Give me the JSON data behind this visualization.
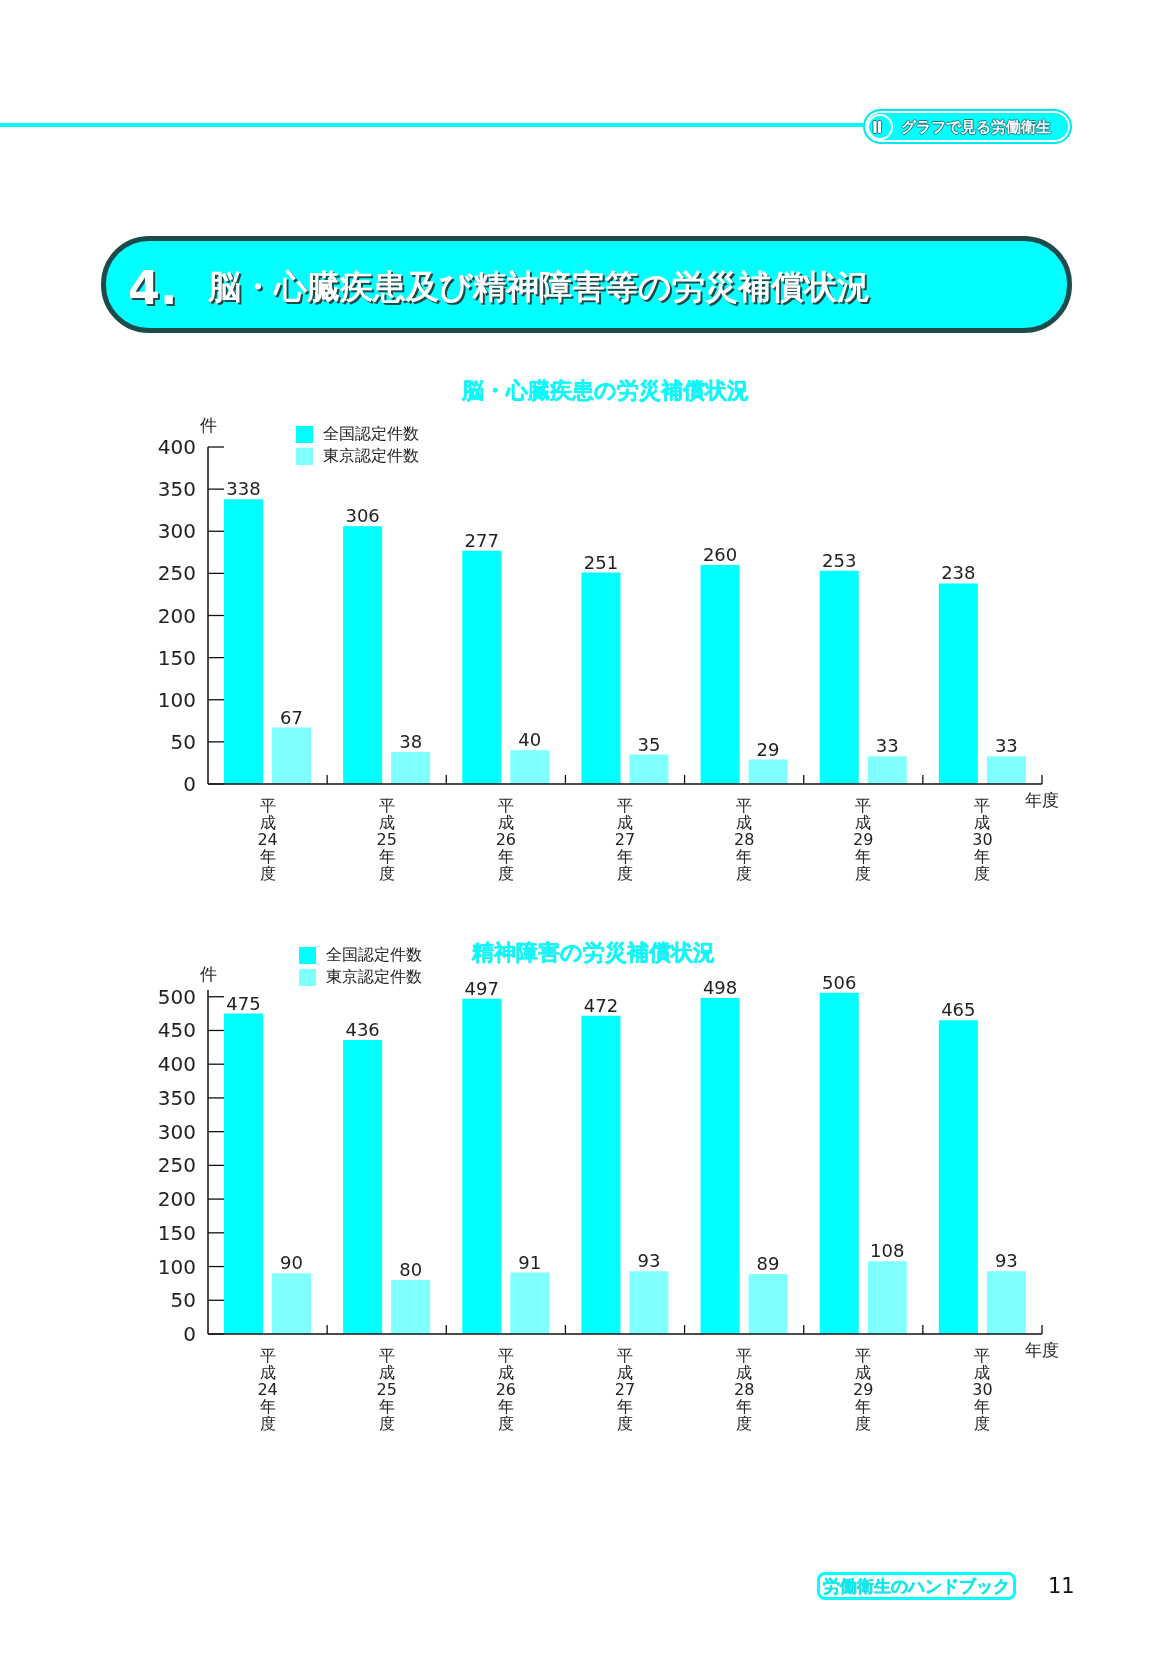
{
  "chart_data": [
    {
      "type": "bar",
      "title": "脳・心臓疾患の労災補償状況",
      "ylabel": "件",
      "xlabel": "年度",
      "categories": [
        "平成24年度",
        "平成25年度",
        "平成26年度",
        "平成27年度",
        "平成28年度",
        "平成29年度",
        "平成30年度"
      ],
      "series": [
        {
          "name": "全国認定件数",
          "color": "#00ffff",
          "values": [
            338,
            306,
            277,
            251,
            260,
            253,
            238
          ]
        },
        {
          "name": "東京認定件数",
          "color": "#80ffff",
          "values": [
            67,
            38,
            40,
            35,
            29,
            33,
            33
          ]
        }
      ],
      "ylim": [
        0,
        400
      ],
      "yticks": [
        0,
        50,
        100,
        150,
        200,
        250,
        300,
        350,
        400
      ],
      "legend": "top left",
      "data_labels": true,
      "annotations": [
        "Ⅱ",
        "グラフで見る労働衛生",
        "4.",
        "脳・心臓疾患及び精神障害等の労災補償状況"
      ]
    },
    {
      "type": "bar",
      "title": "精神障害の労災補償状況",
      "ylabel": "件",
      "xlabel": "年度",
      "categories": [
        "平成24年度",
        "平成25年度",
        "平成26年度",
        "平成27年度",
        "平成28年度",
        "平成29年度",
        "平成30年度"
      ],
      "series": [
        {
          "name": "全国認定件数",
          "color": "#00ffff",
          "values": [
            475,
            436,
            497,
            472,
            498,
            506,
            465
          ]
        },
        {
          "name": "東京認定件数",
          "color": "#80ffff",
          "values": [
            90,
            80,
            91,
            93,
            89,
            108,
            93
          ]
        }
      ],
      "ylim": [
        0,
        510
      ],
      "yticks": [
        0,
        50,
        100,
        150,
        200,
        250,
        300,
        350,
        400,
        450,
        500
      ],
      "legend": "top left",
      "data_labels": true,
      "annotations": [
        "労働衛生のハンドブック",
        "11"
      ]
    }
  ]
}
